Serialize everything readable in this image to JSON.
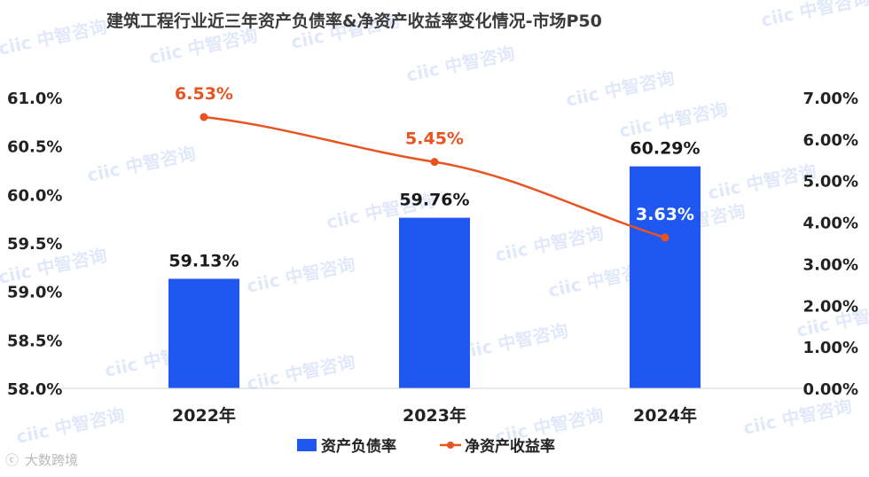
{
  "watermark": "ciic 中智咨询",
  "brand": "大数跨境",
  "colors": {
    "bar": "#1f57f0",
    "line": "#e8531f",
    "text": "#222222",
    "title": "#3a3a3a"
  },
  "chart_data": {
    "type": "bar",
    "title": "建筑工程行业近三年资产负债率&净资产收益率变化情况-市场P50",
    "categories": [
      "2022年",
      "2023年",
      "2024年"
    ],
    "series": [
      {
        "name": "资产负债率",
        "type": "bar",
        "axis": "left",
        "values": [
          59.13,
          59.76,
          60.29
        ],
        "labels": [
          "59.13%",
          "59.76%",
          "60.29%"
        ]
      },
      {
        "name": "净资产收益率",
        "type": "line",
        "axis": "right",
        "values": [
          6.53,
          5.45,
          3.63
        ],
        "labels": [
          "6.53%",
          "5.45%",
          "3.63%"
        ]
      }
    ],
    "y_left": {
      "range": [
        58.0,
        61.0
      ],
      "ticks": [
        "58.0%",
        "58.5%",
        "59.0%",
        "59.5%",
        "60.0%",
        "60.5%",
        "61.0%"
      ]
    },
    "y_right": {
      "range": [
        0.0,
        7.0
      ],
      "ticks": [
        "0.00%",
        "1.00%",
        "2.00%",
        "3.00%",
        "4.00%",
        "5.00%",
        "6.00%",
        "7.00%"
      ]
    },
    "grid": false,
    "legend": "bottom-center"
  }
}
